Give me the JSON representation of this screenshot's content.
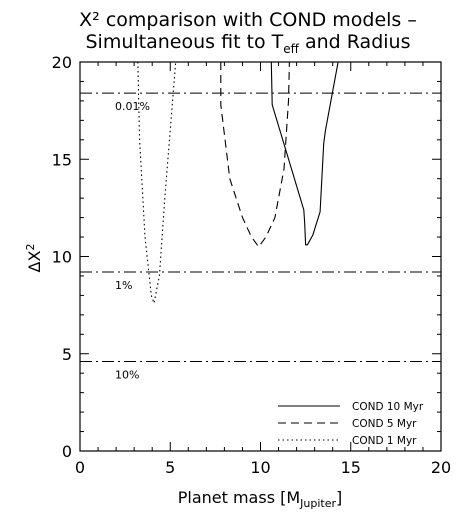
{
  "chart_data": {
    "type": "line",
    "title_line1": "X² comparison with COND models –",
    "title_line2_prefix": "Simultaneous fit to T",
    "title_line2_sub": "eff",
    "title_line2_suffix": " and Radius",
    "xlabel_prefix": "Planet mass [M",
    "xlabel_sub": "Jupiter",
    "xlabel_suffix": "]",
    "ylabel_prefix": "ΔX",
    "ylabel_sup": "2",
    "xlim": [
      0,
      20
    ],
    "ylim": [
      0,
      20
    ],
    "xticks": [
      "0",
      "5",
      "10",
      "15",
      "20"
    ],
    "yticks": [
      "0",
      "5",
      "10",
      "15",
      "20"
    ],
    "grid": false,
    "legend_position": "bottom-right",
    "thresholds": [
      {
        "label": "0.01%",
        "y": 18.4
      },
      {
        "label": "1%",
        "y": 9.2
      },
      {
        "label": "10%",
        "y": 4.6
      }
    ],
    "series": [
      {
        "name": "COND 10 Myr",
        "style": "solid",
        "x": [
          10.6,
          10.65,
          12.4,
          12.45,
          12.5,
          12.6,
          12.9,
          13.3,
          13.5,
          13.6,
          14.3
        ],
        "y": [
          20,
          17.8,
          12.4,
          11.7,
          10.6,
          10.6,
          11.1,
          12.3,
          15.8,
          16.5,
          20
        ]
      },
      {
        "name": "COND 5 Myr",
        "style": "dashed",
        "x": [
          7.8,
          7.8,
          8.3,
          9.0,
          9.5,
          9.9,
          10.3,
          10.8,
          11.3,
          11.55,
          11.6
        ],
        "y": [
          20,
          17.8,
          14.0,
          12.0,
          11.0,
          10.5,
          11.0,
          12.0,
          14.5,
          18.0,
          20
        ]
      },
      {
        "name": "COND 1 Myr",
        "style": "dotted",
        "x": [
          3.2,
          3.3,
          3.6,
          3.95,
          4.1,
          4.4,
          4.7,
          5.3
        ],
        "y": [
          20,
          16.0,
          11.0,
          8.0,
          7.6,
          9.0,
          13.0,
          20
        ]
      }
    ]
  }
}
